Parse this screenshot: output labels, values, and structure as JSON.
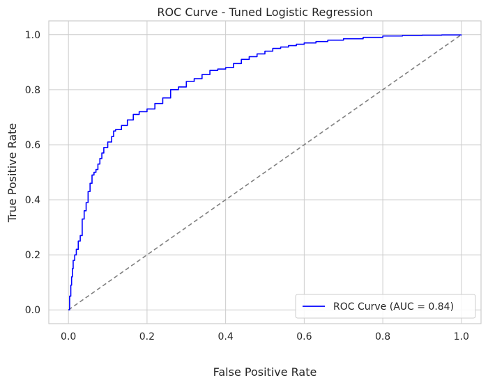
{
  "chart_data": {
    "type": "line",
    "title": "ROC Curve - Tuned Logistic Regression",
    "xlabel": "False Positive Rate",
    "ylabel": "True Positive Rate",
    "xlim": [
      -0.05,
      1.05
    ],
    "ylim": [
      -0.05,
      1.05
    ],
    "xticks": [
      "0.0",
      "0.2",
      "0.4",
      "0.6",
      "0.8",
      "1.0"
    ],
    "yticks": [
      "0.0",
      "0.2",
      "0.4",
      "0.6",
      "0.8",
      "1.0"
    ],
    "grid": true,
    "legend_position": "bottom-right",
    "series": [
      {
        "name": "ROC Curve (AUC = 0.84)",
        "color": "#0000ff",
        "style": "solid",
        "x": [
          0.0,
          0.003,
          0.006,
          0.008,
          0.01,
          0.012,
          0.016,
          0.02,
          0.025,
          0.03,
          0.035,
          0.04,
          0.045,
          0.05,
          0.055,
          0.06,
          0.065,
          0.07,
          0.075,
          0.08,
          0.085,
          0.09,
          0.1,
          0.11,
          0.115,
          0.12,
          0.135,
          0.15,
          0.165,
          0.18,
          0.2,
          0.22,
          0.24,
          0.26,
          0.28,
          0.3,
          0.32,
          0.34,
          0.36,
          0.38,
          0.4,
          0.42,
          0.44,
          0.46,
          0.48,
          0.5,
          0.52,
          0.54,
          0.56,
          0.58,
          0.6,
          0.63,
          0.66,
          0.7,
          0.75,
          0.8,
          0.85,
          0.9,
          0.95,
          1.0
        ],
        "y": [
          0.0,
          0.05,
          0.09,
          0.12,
          0.15,
          0.18,
          0.2,
          0.22,
          0.25,
          0.27,
          0.33,
          0.36,
          0.39,
          0.43,
          0.46,
          0.49,
          0.5,
          0.51,
          0.53,
          0.55,
          0.57,
          0.59,
          0.61,
          0.63,
          0.65,
          0.655,
          0.67,
          0.69,
          0.71,
          0.72,
          0.73,
          0.75,
          0.77,
          0.8,
          0.81,
          0.83,
          0.84,
          0.855,
          0.87,
          0.875,
          0.88,
          0.895,
          0.91,
          0.92,
          0.93,
          0.94,
          0.95,
          0.955,
          0.96,
          0.965,
          0.97,
          0.975,
          0.98,
          0.985,
          0.99,
          0.995,
          0.997,
          0.998,
          0.999,
          1.0
        ]
      },
      {
        "name": "",
        "color": "#808080",
        "style": "dashed",
        "x": [
          0.0,
          1.0
        ],
        "y": [
          0.0,
          1.0
        ]
      }
    ]
  }
}
